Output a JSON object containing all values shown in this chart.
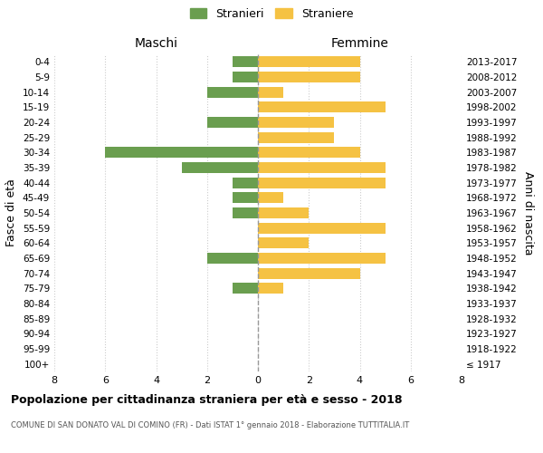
{
  "age_groups": [
    "100+",
    "95-99",
    "90-94",
    "85-89",
    "80-84",
    "75-79",
    "70-74",
    "65-69",
    "60-64",
    "55-59",
    "50-54",
    "45-49",
    "40-44",
    "35-39",
    "30-34",
    "25-29",
    "20-24",
    "15-19",
    "10-14",
    "5-9",
    "0-4"
  ],
  "birth_years": [
    "≤ 1917",
    "1918-1922",
    "1923-1927",
    "1928-1932",
    "1933-1937",
    "1938-1942",
    "1943-1947",
    "1948-1952",
    "1953-1957",
    "1958-1962",
    "1963-1967",
    "1968-1972",
    "1973-1977",
    "1978-1982",
    "1983-1987",
    "1988-1992",
    "1993-1997",
    "1998-2002",
    "2003-2007",
    "2008-2012",
    "2013-2017"
  ],
  "males": [
    0,
    0,
    0,
    0,
    0,
    1,
    0,
    2,
    0,
    0,
    1,
    1,
    1,
    3,
    6,
    0,
    2,
    0,
    2,
    1,
    1
  ],
  "females": [
    0,
    0,
    0,
    0,
    0,
    1,
    4,
    5,
    2,
    5,
    2,
    1,
    5,
    5,
    4,
    3,
    3,
    5,
    1,
    4,
    4
  ],
  "male_color": "#6a9e4f",
  "female_color": "#f5c243",
  "title": "Popolazione per cittadinanza straniera per età e sesso - 2018",
  "subtitle": "COMUNE DI SAN DONATO VAL DI COMINO (FR) - Dati ISTAT 1° gennaio 2018 - Elaborazione TUTTITALIA.IT",
  "left_label": "Maschi",
  "right_label": "Femmine",
  "y_left_label": "Fasce di età",
  "y_right_label": "Anni di nascita",
  "legend_male": "Stranieri",
  "legend_female": "Straniere",
  "xlim": 8,
  "background_color": "#ffffff",
  "grid_color": "#cccccc"
}
